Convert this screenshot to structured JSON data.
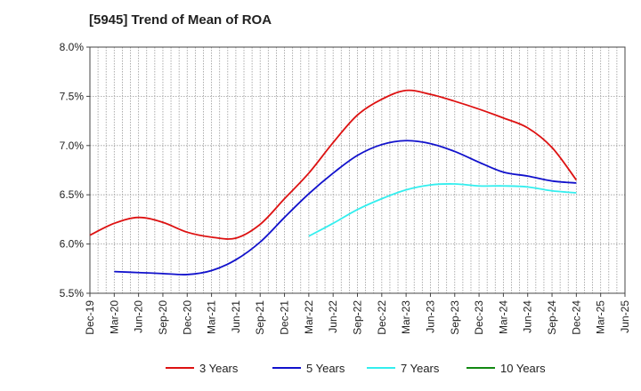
{
  "chart_data": {
    "type": "line",
    "title": "[5945]  Trend of Mean of ROA",
    "xlabel": "",
    "ylabel": "",
    "x_ticks": [
      "Dec-19",
      "Mar-20",
      "Jun-20",
      "Sep-20",
      "Dec-20",
      "Mar-21",
      "Jun-21",
      "Sep-21",
      "Dec-21",
      "Mar-22",
      "Jun-22",
      "Sep-22",
      "Dec-22",
      "Mar-23",
      "Jun-23",
      "Sep-23",
      "Dec-23",
      "Mar-24",
      "Jun-24",
      "Sep-24",
      "Dec-24",
      "Mar-25",
      "Jun-25"
    ],
    "y_ticks": [
      "5.5%",
      "6.0%",
      "6.5%",
      "7.0%",
      "7.5%",
      "8.0%"
    ],
    "ylim": [
      5.5,
      8.0
    ],
    "grid": true,
    "legend_position": "bottom",
    "series": [
      {
        "name": "3 Years",
        "color": "#dd1111",
        "values": [
          6.09,
          6.21,
          6.27,
          6.22,
          6.12,
          6.07,
          6.06,
          6.2,
          6.46,
          6.72,
          7.03,
          7.31,
          7.47,
          7.56,
          7.52,
          7.45,
          7.37,
          7.28,
          7.18,
          6.98,
          6.65,
          null,
          null
        ]
      },
      {
        "name": "5 Years",
        "color": "#1111cc",
        "values": [
          null,
          5.72,
          5.71,
          5.7,
          5.69,
          5.73,
          5.84,
          6.02,
          6.27,
          6.51,
          6.72,
          6.9,
          7.01,
          7.05,
          7.02,
          6.94,
          6.83,
          6.73,
          6.69,
          6.64,
          6.62,
          null,
          null
        ]
      },
      {
        "name": "7 Years",
        "color": "#33eeee",
        "values": [
          null,
          null,
          null,
          null,
          null,
          null,
          null,
          null,
          null,
          6.08,
          6.21,
          6.35,
          6.46,
          6.55,
          6.6,
          6.61,
          6.59,
          6.59,
          6.58,
          6.54,
          6.52,
          null,
          null
        ]
      },
      {
        "name": "10 Years",
        "color": "#118811",
        "values": [
          null,
          null,
          null,
          null,
          null,
          null,
          null,
          null,
          null,
          null,
          null,
          null,
          null,
          null,
          null,
          null,
          null,
          null,
          null,
          null,
          null,
          null,
          null
        ]
      }
    ]
  }
}
